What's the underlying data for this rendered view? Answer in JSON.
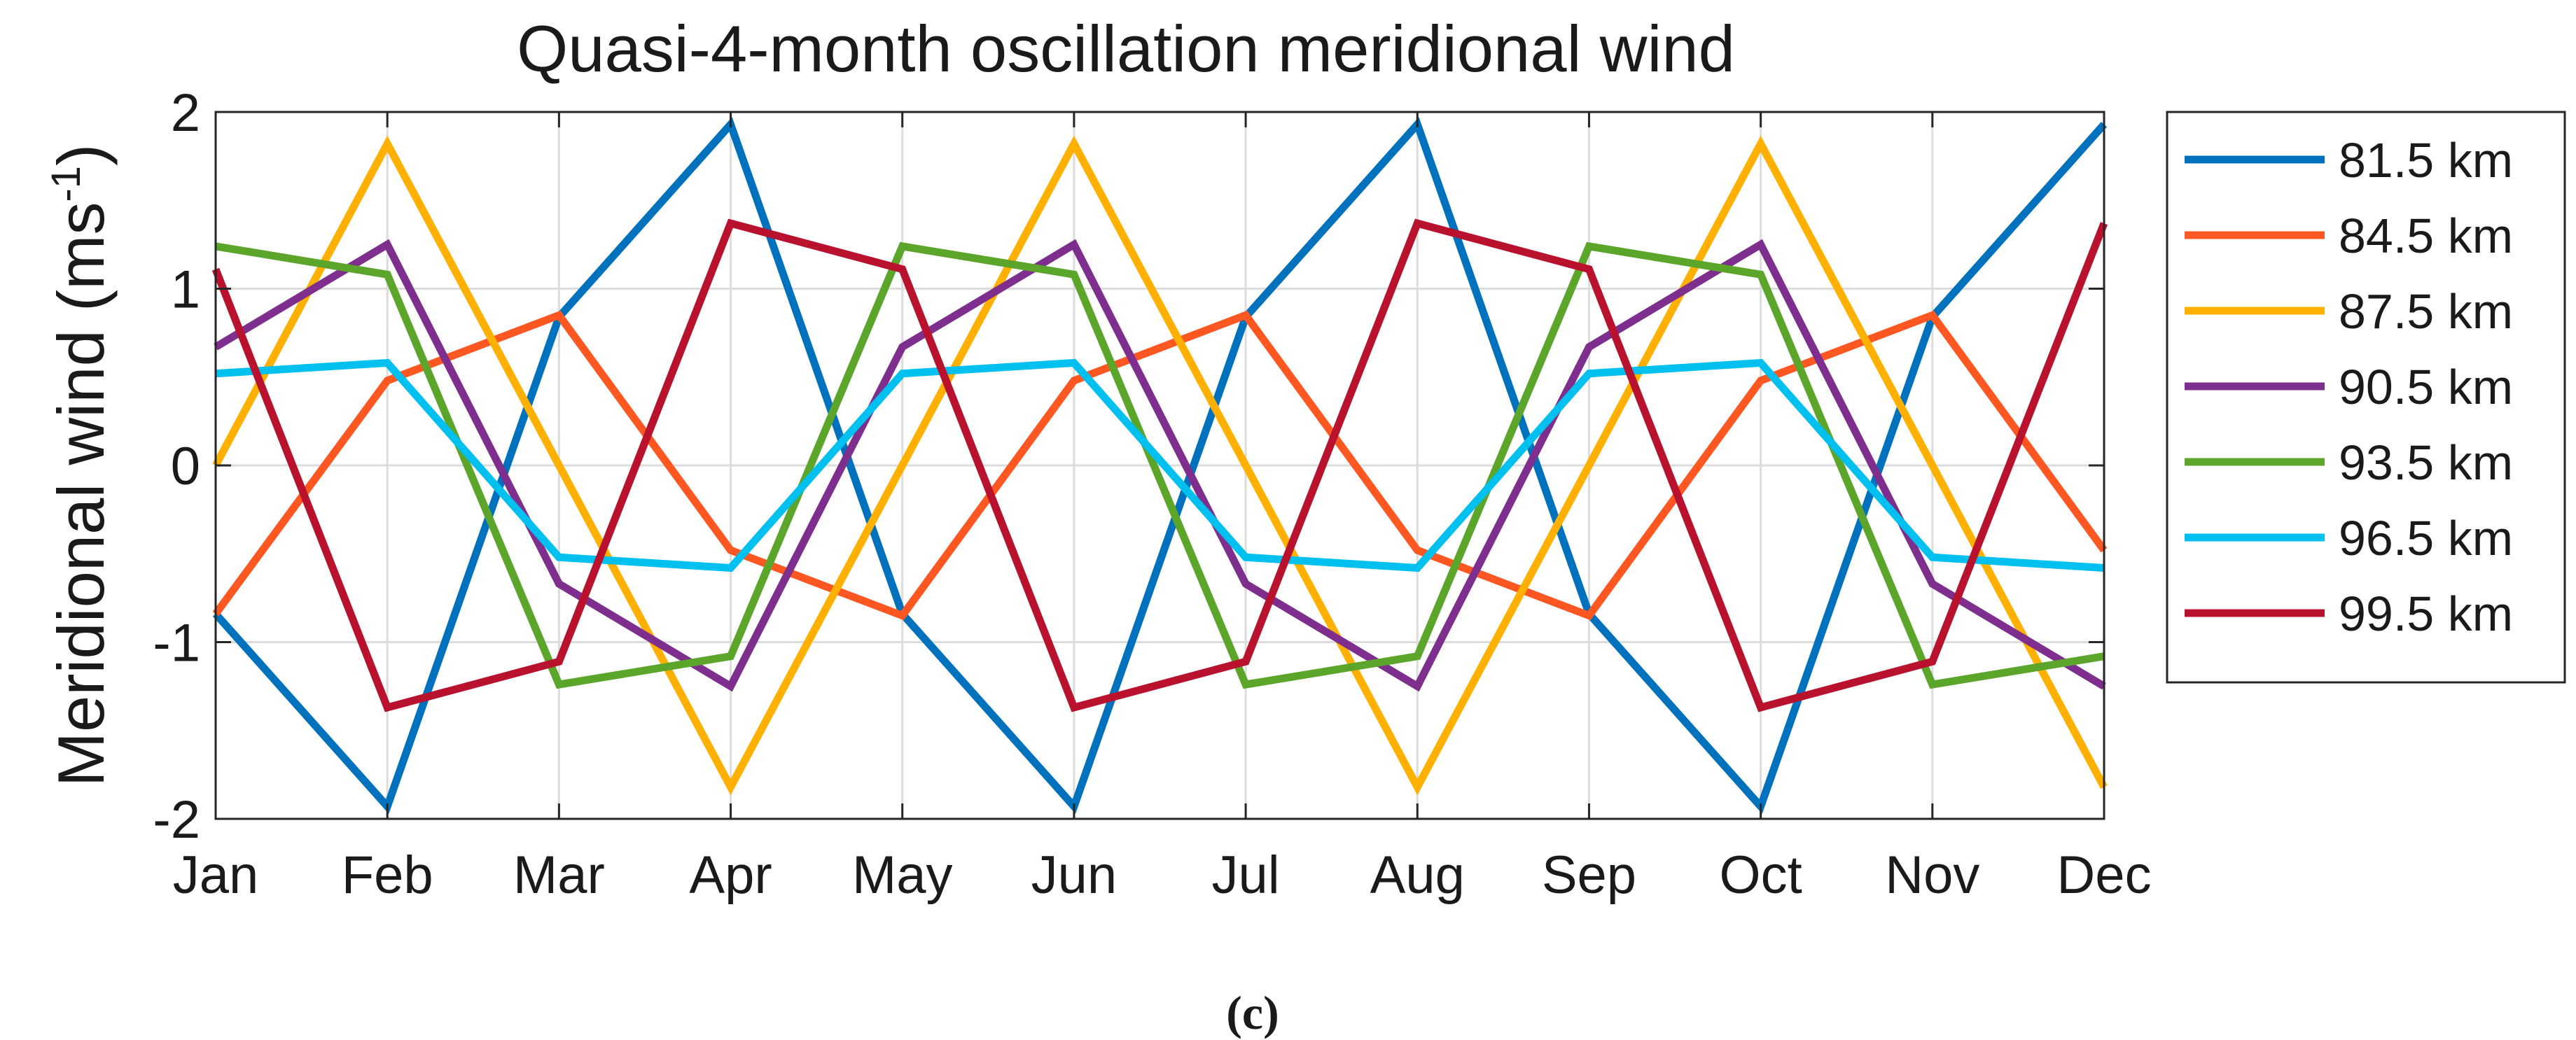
{
  "chart_data": {
    "type": "line",
    "title": "Quasi-4-month oscillation meridional wind",
    "xlabel": "",
    "ylabel": "Meridional wind (ms",
    "ylabel_sup": "-1",
    "ylabel_close": ")",
    "caption": "(c)",
    "categories": [
      "Jan",
      "Feb",
      "Mar",
      "Apr",
      "May",
      "Jun",
      "Jul",
      "Aug",
      "Sep",
      "Oct",
      "Nov",
      "Dec"
    ],
    "ylim": [
      -2,
      2
    ],
    "yticks": [
      -2,
      -1,
      0,
      1,
      2
    ],
    "ytick_labels": [
      "-2",
      "-1",
      "0",
      "1",
      "2"
    ],
    "grid": true,
    "legend_position": "outside-right",
    "series": [
      {
        "name": "81.5 km",
        "color": "#0072BD",
        "values": [
          -0.84,
          -1.93,
          0.84,
          1.93,
          -0.84,
          -1.93,
          0.84,
          1.93,
          -0.84,
          -1.93,
          0.84,
          1.93
        ]
      },
      {
        "name": "84.5 km",
        "color": "#FF5722",
        "values": [
          -0.84,
          0.48,
          0.85,
          -0.48,
          -0.85,
          0.48,
          0.85,
          -0.48,
          -0.85,
          0.48,
          0.85,
          -0.48
        ]
      },
      {
        "name": "87.5 km",
        "color": "#FFB000",
        "values": [
          0.0,
          1.82,
          0.0,
          -1.82,
          0.0,
          1.82,
          0.0,
          -1.82,
          0.0,
          1.82,
          0.0,
          -1.82
        ]
      },
      {
        "name": "90.5 km",
        "color": "#7E2F8E",
        "values": [
          0.67,
          1.25,
          -0.67,
          -1.25,
          0.67,
          1.25,
          -0.67,
          -1.25,
          0.67,
          1.25,
          -0.67,
          -1.25
        ]
      },
      {
        "name": "93.5 km",
        "color": "#5BA52B",
        "values": [
          1.24,
          1.08,
          -1.24,
          -1.08,
          1.24,
          1.08,
          -1.24,
          -1.08,
          1.24,
          1.08,
          -1.24,
          -1.08
        ]
      },
      {
        "name": "96.5 km",
        "color": "#00C0F0",
        "values": [
          0.52,
          0.58,
          -0.52,
          -0.58,
          0.52,
          0.58,
          -0.52,
          -0.58,
          0.52,
          0.58,
          -0.52,
          -0.58
        ]
      },
      {
        "name": "99.5 km",
        "color": "#B8122E",
        "values": [
          1.11,
          -1.37,
          -1.11,
          1.37,
          1.11,
          -1.37,
          -1.11,
          1.37,
          1.11,
          -1.37,
          -1.11,
          1.37
        ]
      }
    ]
  }
}
